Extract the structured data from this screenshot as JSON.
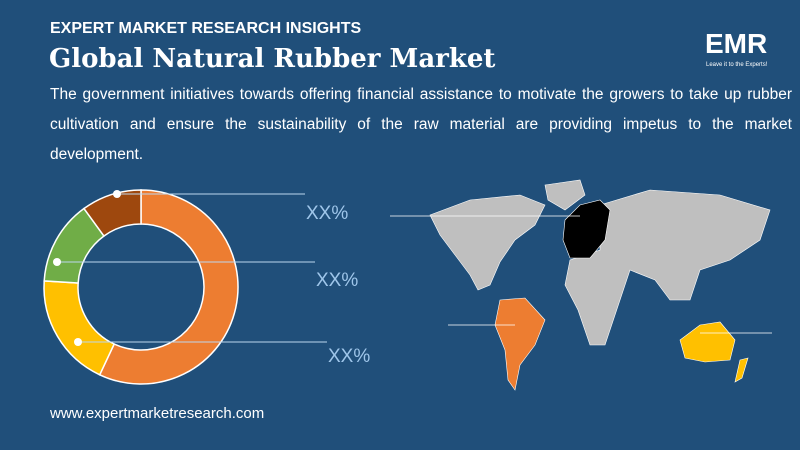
{
  "header": {
    "kicker": "EXPERT MARKET RESEARCH INSIGHTS",
    "title": "Global Natural Rubber Market",
    "description": "The government initiatives towards offering financial assistance to motivate the growers to take up rubber cultivation and ensure the sustainability of the raw material are providing impetus to the market development."
  },
  "logo": {
    "text": "EMR",
    "tagline": "Leave it to the Experts!"
  },
  "footer": {
    "url": "www.expertmarketresearch.com"
  },
  "chart_data": {
    "type": "pie",
    "donut": true,
    "segments": [
      {
        "value": 57,
        "color": "#ed7d31"
      },
      {
        "value": 19,
        "color": "#ffc000"
      },
      {
        "value": 14,
        "color": "#70ad47"
      },
      {
        "value": 10,
        "color": "#9e480e"
      }
    ],
    "callout_labels": [
      "XX%",
      "XX%",
      "XX%"
    ]
  },
  "map": {
    "highlight_colors": {
      "europe": "#000000",
      "south_america": "#ed7d31",
      "oceania": "#ffc000",
      "other": "#bfbfbf"
    }
  }
}
